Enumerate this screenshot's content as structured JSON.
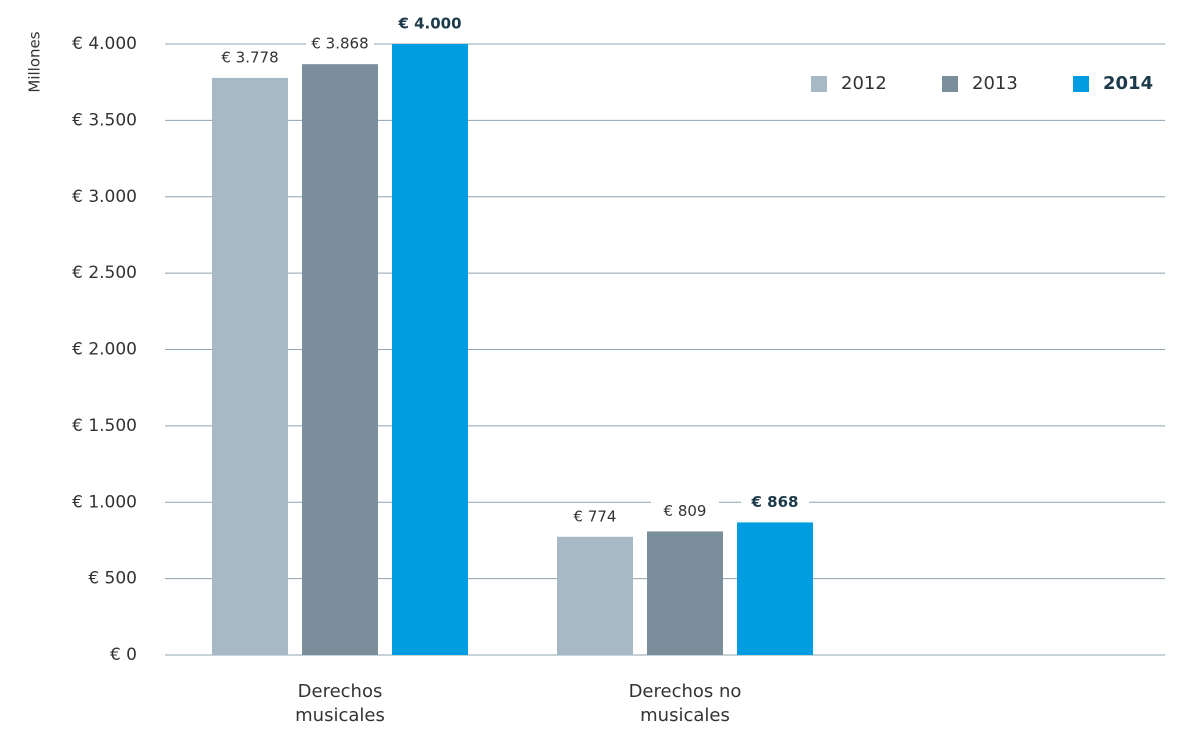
{
  "chart_data": {
    "type": "bar",
    "y_label": "Millones",
    "categories": [
      "Derechos musicales",
      "Derechos no musicales"
    ],
    "series": [
      {
        "name": "2012",
        "color": "#a7b9c4",
        "values": [
          3778,
          774
        ],
        "value_labels": [
          "€ 3.778",
          "€ 774"
        ]
      },
      {
        "name": "2013",
        "color": "#7a8f9b",
        "values": [
          3868,
          809
        ],
        "value_labels": [
          "€ 3.868",
          "€ 809"
        ]
      },
      {
        "name": "2014",
        "color": "#009ee0",
        "values": [
          4000,
          868
        ],
        "value_labels": [
          "€ 4.000",
          "€ 868"
        ]
      }
    ],
    "ylim": [
      0,
      4000
    ],
    "yticks": [
      {
        "value": 0,
        "label": "€ 0"
      },
      {
        "value": 500,
        "label": "€ 500"
      },
      {
        "value": 1000,
        "label": "€ 1.000"
      },
      {
        "value": 1500,
        "label": "€ 1.500"
      },
      {
        "value": 2000,
        "label": "€ 2.000"
      },
      {
        "value": 2500,
        "label": "€ 2.500"
      },
      {
        "value": 3000,
        "label": "€ 3.000"
      },
      {
        "value": 3500,
        "label": "€ 3.500"
      },
      {
        "value": 4000,
        "label": "€ 4.000"
      }
    ],
    "grid": true,
    "legend": "top-right"
  }
}
